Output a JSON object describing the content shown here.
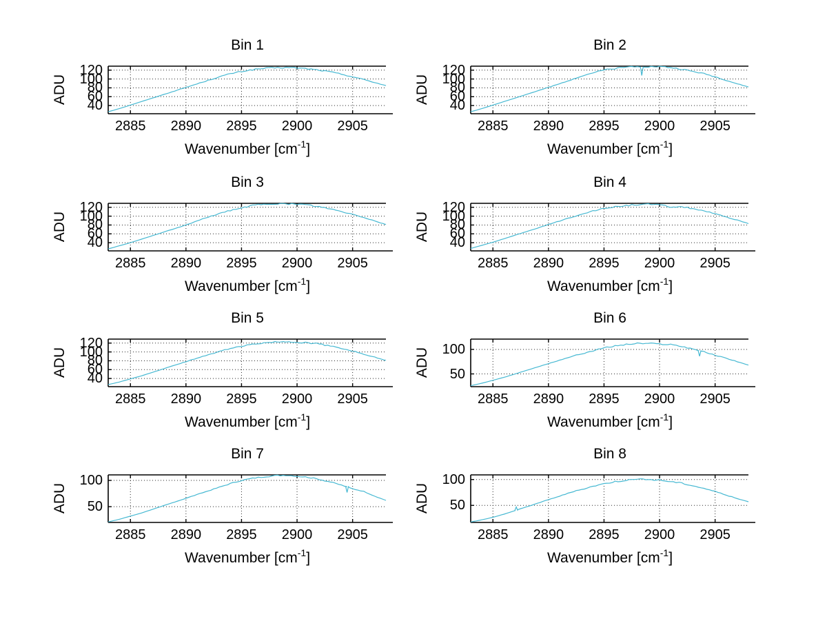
{
  "figure": {
    "background": "#ffffff",
    "line_color": "#45b8d2",
    "grid_color": "#262626",
    "axis_color": "#000000",
    "grid": "on",
    "grid_style": "dotted",
    "x_values": [
      2883,
      2884,
      2885,
      2886,
      2887,
      2888,
      2889,
      2890,
      2891,
      2892,
      2893,
      2894,
      2895,
      2896,
      2897,
      2898,
      2899,
      2900,
      2901,
      2902,
      2903,
      2904,
      2905,
      2906,
      2907,
      2908
    ]
  },
  "chart_data": [
    {
      "type": "line",
      "title": "Bin 1",
      "xlabel": "Wavenumber [cm^-1]",
      "ylabel": "ADU",
      "xlim": [
        2883,
        2908
      ],
      "ylim": [
        21.5,
        129
      ],
      "xticks": [
        2885,
        2890,
        2895,
        2900,
        2905
      ],
      "yticks": [
        40,
        60,
        80,
        100,
        120
      ],
      "y": [
        26,
        33,
        41,
        49,
        57,
        65,
        73,
        81,
        89,
        97,
        105,
        112,
        117,
        121,
        124,
        125,
        126,
        125,
        123,
        120,
        116,
        111,
        105,
        99,
        92,
        85
      ],
      "noise": 1.6,
      "artifacts": []
    },
    {
      "type": "line",
      "title": "Bin 2",
      "xlabel": "Wavenumber [cm^-1]",
      "ylabel": "ADU",
      "xlim": [
        2883,
        2908
      ],
      "ylim": [
        21.5,
        129
      ],
      "xticks": [
        2885,
        2890,
        2895,
        2900,
        2905
      ],
      "yticks": [
        40,
        60,
        80,
        100,
        120
      ],
      "y": [
        26,
        33,
        41,
        49,
        57,
        65,
        73,
        81,
        89,
        98,
        107,
        114,
        120,
        124,
        127,
        129,
        128,
        128,
        126,
        122,
        117,
        112,
        105,
        97,
        89,
        82
      ],
      "noise": 1.7,
      "artifacts": [
        {
          "x": 2898.4,
          "y": 108
        }
      ]
    },
    {
      "type": "line",
      "title": "Bin 3",
      "xlabel": "Wavenumber [cm^-1]",
      "ylabel": "ADU",
      "xlim": [
        2883,
        2908
      ],
      "ylim": [
        21.5,
        129
      ],
      "xticks": [
        2885,
        2890,
        2895,
        2900,
        2905
      ],
      "yticks": [
        40,
        60,
        80,
        100,
        120
      ],
      "y": [
        26,
        33,
        40,
        48,
        56,
        64,
        72,
        80,
        89,
        98,
        106,
        113,
        119,
        124,
        127,
        128,
        128,
        127,
        125,
        121,
        116,
        110,
        104,
        97,
        89,
        81
      ],
      "noise": 1.7,
      "artifacts": []
    },
    {
      "type": "line",
      "title": "Bin 4",
      "xlabel": "Wavenumber [cm^-1]",
      "ylabel": "ADU",
      "xlim": [
        2883,
        2908
      ],
      "ylim": [
        21.5,
        129
      ],
      "xticks": [
        2885,
        2890,
        2895,
        2900,
        2905
      ],
      "yticks": [
        40,
        60,
        80,
        100,
        120
      ],
      "y": [
        27,
        34,
        41,
        49,
        57,
        65,
        73,
        81,
        89,
        97,
        105,
        112,
        117,
        121,
        124,
        126,
        127,
        125,
        121,
        121,
        117,
        112,
        105,
        98,
        91,
        83
      ],
      "noise": 1.7,
      "artifacts": []
    },
    {
      "type": "line",
      "title": "Bin 5",
      "xlabel": "Wavenumber [cm^-1]",
      "ylabel": "ADU",
      "xlim": [
        2883,
        2908
      ],
      "ylim": [
        21.5,
        129
      ],
      "xticks": [
        2885,
        2890,
        2895,
        2900,
        2905
      ],
      "yticks": [
        40,
        60,
        80,
        100,
        120
      ],
      "y": [
        26,
        32,
        39,
        46,
        54,
        62,
        70,
        78,
        86,
        94,
        101,
        108,
        113,
        117,
        120,
        122,
        123,
        122,
        121,
        118,
        113,
        108,
        102,
        95,
        88,
        81
      ],
      "noise": 1.6,
      "artifacts": []
    },
    {
      "type": "line",
      "title": "Bin 6",
      "xlabel": "Wavenumber [cm^-1]",
      "ylabel": "ADU",
      "xlim": [
        2883,
        2908
      ],
      "ylim": [
        24,
        121
      ],
      "xticks": [
        2885,
        2890,
        2895,
        2900,
        2905
      ],
      "yticks": [
        50,
        100
      ],
      "y": [
        26,
        31,
        37,
        43,
        50,
        57,
        64,
        71,
        78,
        85,
        91,
        97,
        103,
        107,
        110,
        112,
        112,
        111,
        110,
        106,
        101,
        95,
        88,
        82,
        75,
        68
      ],
      "noise": 1.5,
      "artifacts": [
        {
          "x": 2903.6,
          "y": 86
        }
      ]
    },
    {
      "type": "line",
      "title": "Bin 7",
      "xlabel": "Wavenumber [cm^-1]",
      "ylabel": "ADU",
      "xlim": [
        2883,
        2908
      ],
      "ylim": [
        20,
        110.5
      ],
      "xticks": [
        2885,
        2890,
        2895,
        2900,
        2905
      ],
      "yticks": [
        50,
        100
      ],
      "y": [
        21,
        26,
        32,
        38,
        45,
        52,
        59,
        66,
        73,
        80,
        87,
        94,
        100,
        104,
        107,
        109,
        110,
        108,
        106,
        102,
        97,
        91,
        84,
        79,
        70,
        62
      ],
      "noise": 1.2,
      "artifacts": [
        {
          "x": 2904.5,
          "y": 77
        }
      ]
    },
    {
      "type": "line",
      "title": "Bin 8",
      "xlabel": "Wavenumber [cm^-1]",
      "ylabel": "ADU",
      "xlim": [
        2883,
        2908
      ],
      "ylim": [
        17,
        109
      ],
      "xticks": [
        2885,
        2890,
        2895,
        2900,
        2905
      ],
      "yticks": [
        50,
        100
      ],
      "y": [
        18,
        22,
        27,
        33,
        40,
        47,
        54,
        61,
        68,
        75,
        81,
        87,
        92,
        96,
        99,
        100,
        100,
        99,
        96,
        93,
        88,
        83,
        77,
        70,
        63,
        57
      ],
      "noise": 1.4,
      "artifacts": [
        {
          "x": 2887.1,
          "y": 47
        }
      ]
    }
  ]
}
